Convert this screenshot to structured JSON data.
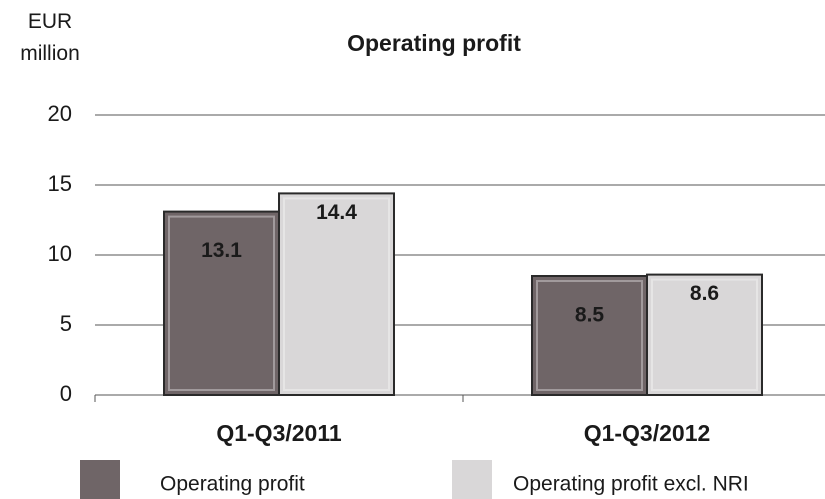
{
  "chart_data": {
    "type": "bar",
    "title": "Operating profit",
    "ylabel": "EUR million",
    "categories": [
      "Q1-Q3/2011",
      "Q1-Q3/2012"
    ],
    "series": [
      {
        "name": "Operating profit",
        "color": "#6f6567",
        "values": [
          13.1,
          8.5
        ]
      },
      {
        "name": "Operating profit excl. NRI",
        "color": "#d9d7d8",
        "values": [
          14.4,
          8.6
        ]
      }
    ],
    "ylim": [
      0,
      20
    ],
    "yticks": [
      0,
      5,
      10,
      15,
      20
    ],
    "grid": true,
    "legend": "bottom"
  }
}
